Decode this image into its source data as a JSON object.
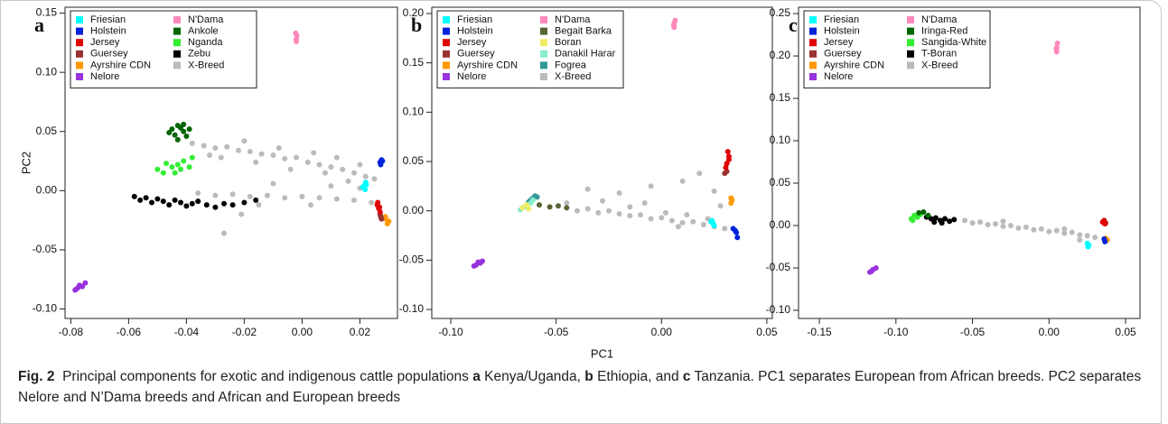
{
  "chart_data": [
    {
      "type": "scatter",
      "label": "a",
      "ylabel": "PC2",
      "xlim": [
        -0.082,
        0.033
      ],
      "ylim": [
        -0.108,
        0.155
      ],
      "xticks": [
        -0.08,
        -0.06,
        -0.04,
        -0.02,
        {
          "value": 0,
          "label": "0.00"
        },
        0.02
      ],
      "yticks": [
        {
          "value": -0.1,
          "label": "-0.10"
        },
        -0.05,
        {
          "value": 0,
          "label": "0.00"
        },
        0.05,
        {
          "value": 0.1,
          "label": "0.10"
        },
        0.15
      ],
      "legend": "upper left",
      "series": [
        {
          "name": "Friesian",
          "color": "#00ffff",
          "x": [
            0.0215,
            0.022,
            0.0218,
            0.0222,
            0.021
          ],
          "values": [
            0.004,
            0.007,
            0.001,
            0.005,
            0.003
          ]
        },
        {
          "name": "Holstein",
          "color": "#0022dd",
          "x": [
            0.027,
            0.0275,
            0.0272,
            0.0278
          ],
          "values": [
            0.024,
            0.026,
            0.022,
            0.025
          ]
        },
        {
          "name": "Jersey",
          "color": "#e00000",
          "x": [
            0.026,
            0.0265,
            0.027,
            0.0262,
            0.0268
          ],
          "values": [
            -0.012,
            -0.015,
            -0.018,
            -0.01,
            -0.014
          ]
        },
        {
          "name": "Guersey",
          "color": "#993333",
          "x": [
            0.027,
            0.0275,
            0.0272
          ],
          "values": [
            -0.02,
            -0.024,
            -0.022
          ]
        },
        {
          "name": "Ayrshire CDN",
          "color": "#ff9900",
          "x": [
            0.029,
            0.0295,
            0.0288,
            0.03
          ],
          "values": [
            -0.024,
            -0.028,
            -0.022,
            -0.026
          ]
        },
        {
          "name": "Nelore",
          "color": "#9933dd",
          "x": [
            -0.078,
            -0.077,
            -0.0775,
            -0.076,
            -0.075,
            -0.0785
          ],
          "values": [
            -0.083,
            -0.08,
            -0.082,
            -0.081,
            -0.078,
            -0.084
          ]
        },
        {
          "name": "N'Dama",
          "color": "#ff88bb",
          "x": [
            -0.002,
            -0.0018,
            -0.0022,
            -0.002
          ],
          "values": [
            0.128,
            0.131,
            0.133,
            0.126
          ]
        },
        {
          "name": "Ankole",
          "color": "#006600",
          "x": [
            -0.045,
            -0.043,
            -0.041,
            -0.044,
            -0.042,
            -0.04,
            -0.046,
            -0.039,
            -0.043,
            -0.041
          ],
          "values": [
            0.052,
            0.055,
            0.05,
            0.047,
            0.053,
            0.046,
            0.049,
            0.052,
            0.043,
            0.056
          ]
        },
        {
          "name": "Nganda",
          "color": "#33ee33",
          "x": [
            -0.05,
            -0.048,
            -0.045,
            -0.043,
            -0.041,
            -0.047,
            -0.044,
            -0.039,
            -0.042,
            -0.038
          ],
          "values": [
            0.018,
            0.015,
            0.02,
            0.022,
            0.025,
            0.023,
            0.015,
            0.02,
            0.018,
            0.028
          ]
        },
        {
          "name": "Zebu",
          "color": "#000000",
          "x": [
            -0.058,
            -0.056,
            -0.054,
            -0.052,
            -0.05,
            -0.048,
            -0.046,
            -0.044,
            -0.042,
            -0.04,
            -0.038,
            -0.036,
            -0.033,
            -0.03,
            -0.027,
            -0.024,
            -0.02,
            -0.016
          ],
          "values": [
            -0.005,
            -0.008,
            -0.006,
            -0.01,
            -0.007,
            -0.009,
            -0.012,
            -0.008,
            -0.01,
            -0.013,
            -0.011,
            -0.009,
            -0.012,
            -0.014,
            -0.011,
            -0.012,
            -0.01,
            -0.008
          ]
        },
        {
          "name": "X-Breed",
          "color": "#bbbbbb",
          "x": [
            -0.038,
            -0.034,
            -0.03,
            -0.026,
            -0.022,
            -0.018,
            -0.014,
            -0.01,
            -0.006,
            -0.002,
            0.002,
            0.006,
            0.01,
            0.014,
            0.018,
            0.022,
            0.025,
            -0.028,
            -0.016,
            -0.004,
            0.008,
            0.016,
            -0.032,
            -0.02,
            -0.008,
            0.004,
            0.012,
            0.02,
            -0.036,
            -0.03,
            -0.024,
            -0.018,
            -0.012,
            -0.006,
            0.0,
            0.006,
            0.012,
            0.018,
            0.024,
            -0.015,
            0.003,
            -0.021,
            -0.027,
            0.01,
            -0.01,
            0.02
          ],
          "values": [
            0.04,
            0.038,
            0.036,
            0.037,
            0.034,
            0.033,
            0.031,
            0.03,
            0.027,
            0.028,
            0.024,
            0.022,
            0.02,
            0.018,
            0.015,
            0.012,
            0.01,
            0.028,
            0.024,
            0.018,
            0.015,
            0.008,
            0.03,
            0.042,
            0.036,
            0.032,
            0.028,
            0.022,
            -0.002,
            -0.004,
            -0.003,
            -0.005,
            -0.004,
            -0.006,
            -0.005,
            -0.006,
            -0.007,
            -0.008,
            -0.01,
            -0.012,
            -0.012,
            -0.02,
            -0.036,
            0.004,
            0.006,
            0.002
          ]
        }
      ]
    },
    {
      "type": "scatter",
      "label": "b",
      "xlabel": "PC1",
      "xlim": [
        -0.109,
        0.0526
      ],
      "ylim": [
        -0.1091,
        0.2064
      ],
      "xticks": [
        {
          "value": -0.1,
          "label": "-0.10"
        },
        -0.05,
        {
          "value": 0,
          "label": "0.00"
        },
        0.05
      ],
      "yticks": [
        {
          "value": -0.1,
          "label": "-0.10"
        },
        -0.05,
        {
          "value": 0,
          "label": "0.00"
        },
        0.05,
        {
          "value": 0.1,
          "label": "0.10"
        },
        0.15,
        {
          "value": 0.2,
          "label": "0.20"
        }
      ],
      "legend": "upper left",
      "series": [
        {
          "name": "Friesian",
          "color": "#00ffff",
          "x": [
            0.024,
            0.0245,
            0.0235,
            0.025
          ],
          "values": [
            -0.01,
            -0.013,
            -0.011,
            -0.015
          ]
        },
        {
          "name": "Holstein",
          "color": "#0022dd",
          "x": [
            0.034,
            0.035,
            0.0355,
            0.036
          ],
          "values": [
            -0.018,
            -0.02,
            -0.022,
            -0.027
          ]
        },
        {
          "name": "Jersey",
          "color": "#e00000",
          "x": [
            0.031,
            0.032,
            0.0315,
            0.0305,
            0.032
          ],
          "values": [
            0.048,
            0.055,
            0.06,
            0.044,
            0.052
          ]
        },
        {
          "name": "Guersey",
          "color": "#993333",
          "x": [
            0.03,
            0.031
          ],
          "values": [
            0.038,
            0.04
          ]
        },
        {
          "name": "Ayrshire CDN",
          "color": "#ff9900",
          "x": [
            0.033,
            0.0335,
            0.033
          ],
          "values": [
            0.008,
            0.011,
            0.013
          ]
        },
        {
          "name": "Nelore",
          "color": "#9933dd",
          "x": [
            -0.088,
            -0.087,
            -0.086,
            -0.085,
            -0.089
          ],
          "values": [
            -0.055,
            -0.052,
            -0.053,
            -0.051,
            -0.056
          ]
        },
        {
          "name": "N'Dama",
          "color": "#ff88bb",
          "x": [
            0.006,
            0.006,
            0.0065,
            0.0058
          ],
          "values": [
            0.186,
            0.19,
            0.193,
            0.188
          ]
        },
        {
          "name": "Begait Barka",
          "color": "#556633",
          "x": [
            -0.058,
            -0.053,
            -0.049,
            -0.045
          ],
          "values": [
            0.006,
            0.004,
            0.005,
            0.003
          ]
        },
        {
          "name": "Boran",
          "color": "#eeee66",
          "x": [
            -0.066,
            -0.064,
            -0.063
          ],
          "values": [
            0.003,
            0.006,
            0.002
          ]
        },
        {
          "name": "Danakil Harar",
          "color": "#88eecc",
          "x": [
            -0.067,
            -0.065,
            -0.062,
            -0.061
          ],
          "values": [
            0.001,
            0.004,
            0.008,
            0.011
          ]
        },
        {
          "name": "Fogrea",
          "color": "#339999",
          "x": [
            -0.063,
            -0.061,
            -0.06,
            -0.062,
            -0.059
          ],
          "values": [
            0.009,
            0.013,
            0.015,
            0.011,
            0.014
          ]
        },
        {
          "name": "X-Breed",
          "color": "#bbbbbb",
          "x": [
            -0.04,
            -0.035,
            -0.03,
            -0.025,
            -0.02,
            -0.015,
            -0.01,
            -0.005,
            0.0,
            0.005,
            0.01,
            0.015,
            0.02,
            0.025,
            0.03,
            -0.028,
            -0.015,
            -0.008,
            0.002,
            0.012,
            0.022,
            -0.035,
            -0.005,
            0.01,
            0.018,
            -0.02,
            0.028,
            0.025,
            -0.045,
            0.008
          ],
          "values": [
            0.0,
            0.002,
            -0.002,
            0.0,
            -0.003,
            -0.005,
            -0.004,
            -0.008,
            -0.007,
            -0.01,
            -0.012,
            -0.011,
            -0.014,
            -0.016,
            -0.018,
            0.01,
            0.004,
            0.008,
            -0.002,
            -0.004,
            -0.008,
            0.022,
            0.025,
            0.03,
            0.038,
            0.018,
            0.005,
            0.02,
            0.008,
            -0.016
          ]
        }
      ]
    },
    {
      "type": "scatter",
      "label": "c",
      "xlim": [
        -0.1636,
        0.0594
      ],
      "ylim": [
        -0.1096,
        0.2575
      ],
      "xticks": [
        -0.15,
        {
          "value": -0.1,
          "label": "-0.10"
        },
        -0.05,
        {
          "value": 0,
          "label": "0.00"
        },
        0.05
      ],
      "yticks": [
        {
          "value": -0.1,
          "label": "-0.10"
        },
        -0.05,
        {
          "value": 0,
          "label": "0.00"
        },
        0.05,
        {
          "value": 0.1,
          "label": "0.10"
        },
        0.15,
        {
          "value": 0.2,
          "label": "0.20"
        },
        0.25
      ],
      "legend": "upper left",
      "series": [
        {
          "name": "Friesian",
          "color": "#00ffff",
          "x": [
            0.025,
            0.026,
            0.0255
          ],
          "values": [
            -0.021,
            -0.023,
            -0.025
          ]
        },
        {
          "name": "Holstein",
          "color": "#0022dd",
          "x": [
            0.036,
            0.0365
          ],
          "values": [
            -0.016,
            -0.019
          ]
        },
        {
          "name": "Jersey",
          "color": "#e00000",
          "x": [
            0.035,
            0.036,
            0.0365
          ],
          "values": [
            0.004,
            0.006,
            0.002
          ]
        },
        {
          "name": "Guersey",
          "color": "#993333",
          "x": [
            0.037
          ],
          "values": [
            0.003
          ]
        },
        {
          "name": "Ayrshire CDN",
          "color": "#ff9900",
          "x": [
            0.037,
            0.038
          ],
          "values": [
            -0.015,
            -0.017
          ]
        },
        {
          "name": "Nelore",
          "color": "#9933dd",
          "x": [
            -0.117,
            -0.115,
            -0.113,
            -0.116
          ],
          "values": [
            -0.055,
            -0.052,
            -0.05,
            -0.054
          ]
        },
        {
          "name": "N'Dama",
          "color": "#ff88bb",
          "x": [
            0.005,
            0.005,
            0.0055,
            0.0048
          ],
          "values": [
            0.205,
            0.21,
            0.215,
            0.208
          ]
        },
        {
          "name": "Iringa-Red",
          "color": "#006600",
          "x": [
            -0.085,
            -0.082,
            -0.079
          ],
          "values": [
            0.015,
            0.016,
            0.012
          ]
        },
        {
          "name": "Sangida-White",
          "color": "#33ee33",
          "x": [
            -0.09,
            -0.088,
            -0.086,
            -0.084,
            -0.089
          ],
          "values": [
            0.008,
            0.012,
            0.01,
            0.013,
            0.006
          ]
        },
        {
          "name": "T-Boran",
          "color": "#000000",
          "x": [
            -0.08,
            -0.077,
            -0.074,
            -0.071,
            -0.068,
            -0.065,
            -0.062,
            -0.075,
            -0.07
          ],
          "values": [
            0.01,
            0.008,
            0.009,
            0.006,
            0.008,
            0.005,
            0.007,
            0.004,
            0.003
          ]
        },
        {
          "name": "X-Breed",
          "color": "#bbbbbb",
          "x": [
            -0.055,
            -0.05,
            -0.045,
            -0.04,
            -0.035,
            -0.03,
            -0.025,
            -0.02,
            -0.015,
            -0.01,
            -0.005,
            0.0,
            0.005,
            0.01,
            0.015,
            0.02,
            0.025,
            0.03,
            -0.03,
            0.01,
            0.02
          ],
          "values": [
            0.006,
            0.003,
            0.004,
            0.001,
            0.002,
            -0.001,
            0.0,
            -0.003,
            -0.002,
            -0.005,
            -0.004,
            -0.007,
            -0.006,
            -0.009,
            -0.008,
            -0.011,
            -0.012,
            -0.014,
            0.005,
            -0.004,
            -0.017
          ]
        }
      ]
    }
  ],
  "caption": [
    {
      "text": "Fig. 2",
      "bold": true
    },
    {
      "text": "  Principal components for exotic and indigenous cattle populations ",
      "bold": false
    },
    {
      "text": "a",
      "bold": true
    },
    {
      "text": " Kenya/Uganda, ",
      "bold": false
    },
    {
      "text": "b",
      "bold": true
    },
    {
      "text": " Ethiopia, and ",
      "bold": false
    },
    {
      "text": "c",
      "bold": true
    },
    {
      "text": " Tanzania. PC1 separates European from African breeds. PC2 separates Nelore and N’Dama breeds and African and European breeds",
      "bold": false
    }
  ]
}
